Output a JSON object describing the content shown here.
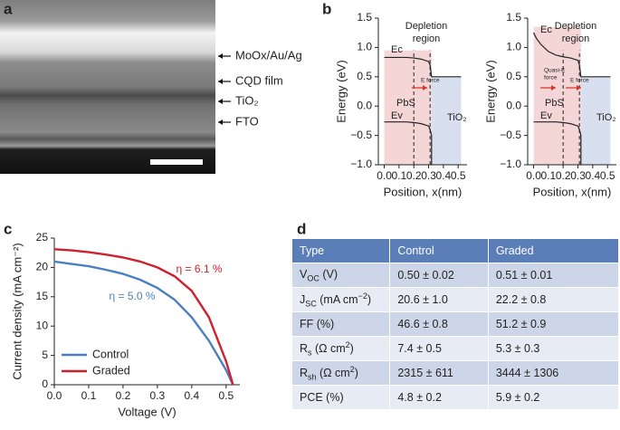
{
  "figure": {
    "panel_labels": [
      "a",
      "b",
      "c",
      "d"
    ],
    "sem_labels": [
      "MoOx/Au/Ag",
      "CQD film",
      "TiO₂",
      "FTO"
    ],
    "table": {
      "header": [
        "Type",
        "Control",
        "Graded"
      ],
      "rows": [
        [
          [
            {
              "text": "V"
            },
            {
              "sub": "OC"
            },
            {
              "text": " (V)"
            }
          ],
          "0.50 ± 0.02",
          "0.51 ± 0.01"
        ],
        [
          [
            {
              "text": "J"
            },
            {
              "sub": "SC"
            },
            {
              "text": " (mA cm"
            },
            {
              "sup": "−2"
            },
            {
              "text": ")"
            }
          ],
          "20.6 ± 1.0",
          "22.2 ± 0.8"
        ],
        [
          [
            {
              "text": "FF (%)"
            }
          ],
          "46.6 ± 0.8",
          "51.2 ± 0.9"
        ],
        [
          [
            {
              "text": "R"
            },
            {
              "sub": "s"
            },
            {
              "text": " (Ω cm"
            },
            {
              "sup": "2"
            },
            {
              "text": ")"
            }
          ],
          "7.4 ± 0.5",
          "5.3 ± 0.3"
        ],
        [
          [
            {
              "text": "R"
            },
            {
              "sub": "sh"
            },
            {
              "text": " (Ω cm"
            },
            {
              "sup": "2"
            },
            {
              "text": ")"
            }
          ],
          "2315 ± 611",
          "3444 ± 1306"
        ],
        [
          [
            {
              "text": "PCE (%)"
            }
          ],
          "4.8 ± 0.2",
          "5.9 ± 0.2"
        ]
      ]
    }
  },
  "chart_data": [
    {
      "type": "band",
      "ylabel": "Energy (eV)",
      "xlabel": "Position, x(nm)",
      "xlim": [
        -0.04,
        0.56
      ],
      "ylim": [
        -1.0,
        1.5
      ],
      "xticks": [
        {
          "value": 0,
          "label": "0.0"
        },
        {
          "value": 0.1,
          "label": "0.1"
        },
        {
          "value": 0.2,
          "label": "0.2"
        },
        {
          "value": 0.3,
          "label": "0.3"
        },
        {
          "value": 0.4,
          "label": "0.4"
        },
        {
          "value": 0.5,
          "label": "0.5"
        }
      ],
      "yticks": [
        {
          "value": -1.0,
          "label": "−1.0"
        },
        {
          "value": -0.5,
          "label": "−0.5"
        },
        {
          "value": 0,
          "label": "0.0"
        },
        {
          "value": 0.5,
          "label": "0.5"
        },
        {
          "value": 1.0,
          "label": "1.0"
        },
        {
          "value": 1.5,
          "label": "1.5"
        }
      ],
      "regions": [
        {
          "name": "PbS",
          "color": "#f5d6d6",
          "x": [
            0,
            0.32
          ],
          "y": [
            -1.0,
            0.95
          ]
        },
        {
          "name": "TiO₂",
          "color": "#d8dfee",
          "x": [
            0.32,
            0.52
          ],
          "y": [
            -1.0,
            0.5
          ]
        }
      ],
      "dashed_x": [
        0.2,
        0.31
      ],
      "series": [
        {
          "name": "Ec",
          "color": "#222222",
          "x": [
            0,
            0.05,
            0.1,
            0.15,
            0.2,
            0.25,
            0.3,
            0.31,
            0.32,
            0.4,
            0.52
          ],
          "values": [
            0.83,
            0.83,
            0.83,
            0.83,
            0.82,
            0.8,
            0.76,
            0.7,
            0.5,
            0.5,
            0.5
          ]
        },
        {
          "name": "Ev",
          "color": "#222222",
          "x": [
            0,
            0.05,
            0.1,
            0.15,
            0.2,
            0.25,
            0.3,
            0.31,
            0.32,
            0.32
          ],
          "values": [
            -0.27,
            -0.27,
            -0.27,
            -0.27,
            -0.28,
            -0.3,
            -0.34,
            -0.4,
            -0.5,
            -1.0
          ]
        }
      ],
      "annotations": [
        "Depletion",
        "region",
        "E force"
      ]
    },
    {
      "type": "band",
      "ylabel": "Energy (eV)",
      "xlabel": "Position, x(nm)",
      "xlim": [
        -0.04,
        0.56
      ],
      "ylim": [
        -1.0,
        1.5
      ],
      "xticks": [
        {
          "value": 0,
          "label": "0.0"
        },
        {
          "value": 0.1,
          "label": "0.1"
        },
        {
          "value": 0.2,
          "label": "0.2"
        },
        {
          "value": 0.3,
          "label": "0.3"
        },
        {
          "value": 0.4,
          "label": "0.4"
        },
        {
          "value": 0.5,
          "label": "0.5"
        }
      ],
      "yticks": [
        {
          "value": -1.0,
          "label": "−1.0"
        },
        {
          "value": -0.5,
          "label": "−0.5"
        },
        {
          "value": 0,
          "label": "0.0"
        },
        {
          "value": 0.5,
          "label": "0.5"
        },
        {
          "value": 1.0,
          "label": "1.0"
        },
        {
          "value": 1.5,
          "label": "1.5"
        }
      ],
      "regions": [
        {
          "name": "PbS",
          "color": "#f5d6d6",
          "x": [
            0,
            0.32
          ],
          "y": [
            -1.0,
            1.35
          ]
        },
        {
          "name": "TiO₂",
          "color": "#d8dfee",
          "x": [
            0.32,
            0.52
          ],
          "y": [
            -1.0,
            0.5
          ]
        }
      ],
      "dashed_x": [
        0.2,
        0.31
      ],
      "series": [
        {
          "name": "Ec",
          "color": "#222222",
          "x": [
            0,
            0.02,
            0.05,
            0.1,
            0.15,
            0.2,
            0.25,
            0.3,
            0.31,
            0.32,
            0.4,
            0.52
          ],
          "values": [
            1.25,
            1.15,
            1.05,
            0.93,
            0.87,
            0.84,
            0.82,
            0.78,
            0.7,
            0.5,
            0.5,
            0.5
          ]
        },
        {
          "name": "Ev",
          "color": "#222222",
          "x": [
            0,
            0.05,
            0.1,
            0.15,
            0.2,
            0.25,
            0.3,
            0.31,
            0.32,
            0.32
          ],
          "values": [
            -0.27,
            -0.27,
            -0.27,
            -0.27,
            -0.28,
            -0.3,
            -0.34,
            -0.4,
            -0.5,
            -1.0
          ]
        }
      ],
      "annotations": [
        "Depletion",
        "region",
        "Quasi-E",
        "force",
        "E force"
      ]
    },
    {
      "type": "line",
      "ylabel": "Current density (mA cm⁻²)",
      "xlabel": "Voltage (V)",
      "xlim": [
        0,
        0.54
      ],
      "ylim": [
        0,
        25
      ],
      "xticks": [
        {
          "value": 0,
          "label": "0.0"
        },
        {
          "value": 0.1,
          "label": "0.1"
        },
        {
          "value": 0.2,
          "label": "0.2"
        },
        {
          "value": 0.3,
          "label": "0.3"
        },
        {
          "value": 0.4,
          "label": "0.4"
        },
        {
          "value": 0.5,
          "label": "0.5"
        }
      ],
      "yticks": [
        0,
        5,
        10,
        15,
        20,
        25
      ],
      "x": [
        0,
        0.05,
        0.1,
        0.15,
        0.2,
        0.25,
        0.3,
        0.35,
        0.4,
        0.45,
        0.5,
        0.52
      ],
      "series": [
        {
          "name": "Control",
          "color": "#4a7fc1",
          "values": [
            21.0,
            20.6,
            20.2,
            19.6,
            18.9,
            17.9,
            16.5,
            14.5,
            11.5,
            7.5,
            2.5,
            0
          ]
        },
        {
          "name": "Graded",
          "color": "#d0202e",
          "values": [
            23.1,
            22.9,
            22.6,
            22.2,
            21.7,
            21.0,
            20.0,
            18.5,
            16.0,
            11.5,
            4.0,
            0
          ]
        }
      ],
      "legend": "lower left",
      "annotations": [
        {
          "text": "η = 6.1 %",
          "color": "#d0202e"
        },
        {
          "text": "η = 5.0 %",
          "color": "#4a7fc1"
        }
      ]
    }
  ]
}
